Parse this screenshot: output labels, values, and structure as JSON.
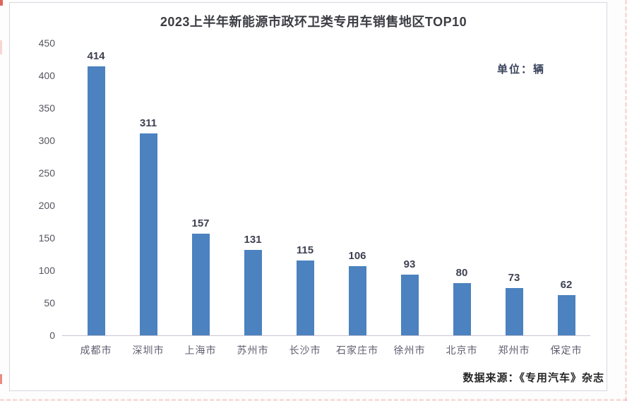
{
  "chart_data": {
    "type": "bar",
    "title": "2023上半年新能源市政环卫类专用车销售地区TOP10",
    "unit_label": "单位：辆",
    "categories": [
      "成都市",
      "深圳市",
      "上海市",
      "苏州市",
      "长沙市",
      "石家庄市",
      "徐州市",
      "北京市",
      "郑州市",
      "保定市"
    ],
    "values": [
      414,
      311,
      157,
      131,
      115,
      106,
      93,
      80,
      73,
      62
    ],
    "yticks": [
      0,
      50,
      100,
      150,
      200,
      250,
      300,
      350,
      400,
      450
    ],
    "ylim": [
      0,
      450
    ],
    "grid": false,
    "legend": "none",
    "bar_color": "#4b82bf",
    "source": "数据来源：《专用汽车》杂志"
  }
}
